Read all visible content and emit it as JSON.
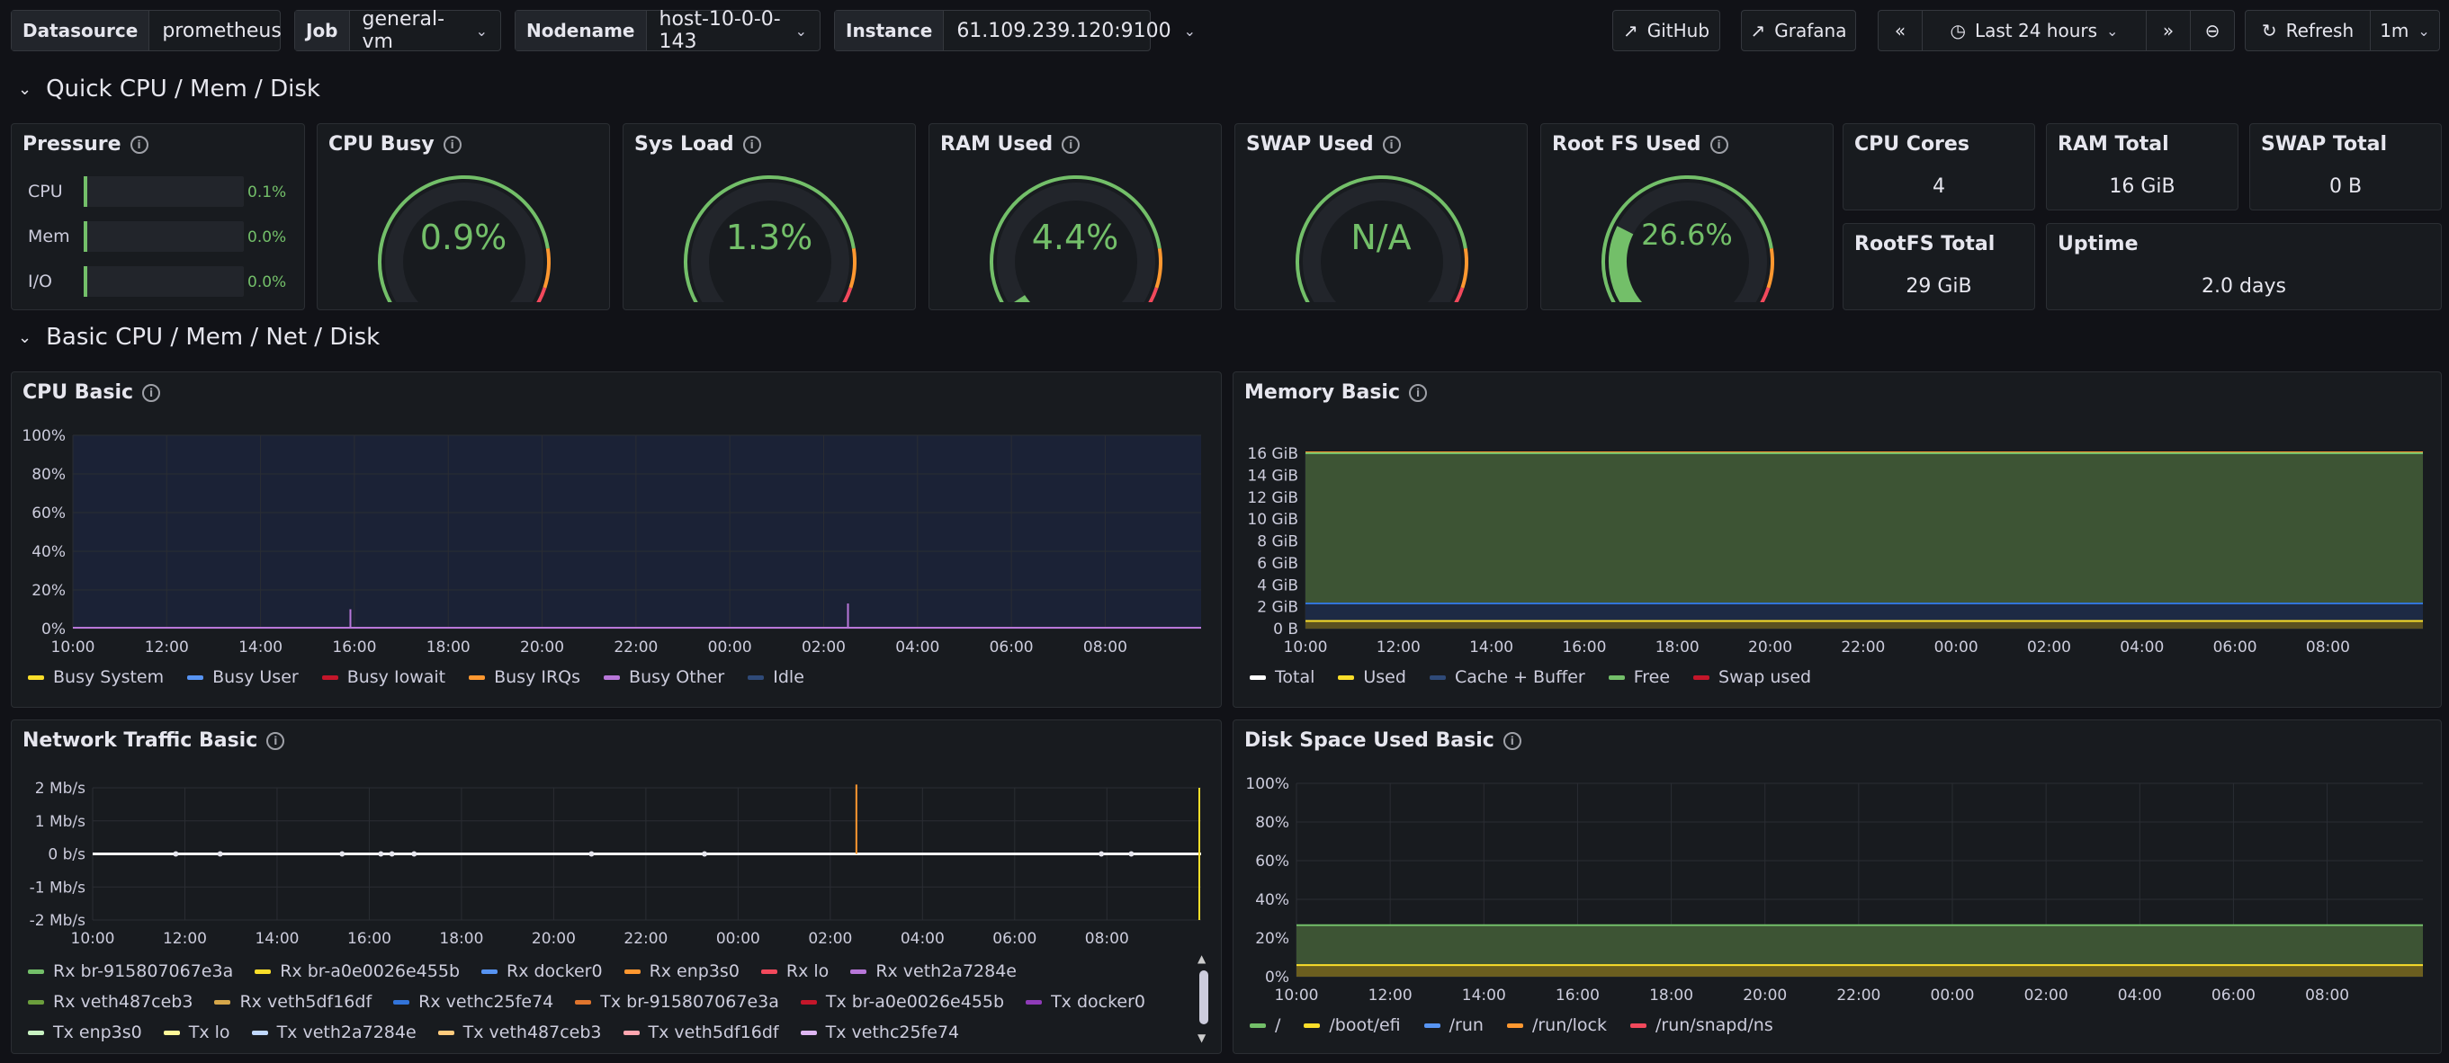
{
  "variables": [
    {
      "label": "Datasource",
      "value": "prometheus"
    },
    {
      "label": "Job",
      "value": "general-vm"
    },
    {
      "label": "Nodename",
      "value": "host-10-0-0-143"
    },
    {
      "label": "Instance",
      "value": "61.109.239.120:9100"
    }
  ],
  "toolbar": {
    "github": "GitHub",
    "grafana": "Grafana",
    "time_range": "Last 24 hours",
    "refresh": "Refresh",
    "interval": "1m"
  },
  "rows": {
    "quick": "Quick CPU / Mem / Disk",
    "basic": "Basic CPU / Mem / Net / Disk"
  },
  "pressure": {
    "title": "Pressure",
    "items": [
      {
        "label": "CPU",
        "value": "0.1%",
        "fraction": 0.001
      },
      {
        "label": "Mem",
        "value": "0.0%",
        "fraction": 0
      },
      {
        "label": "I/O",
        "value": "0.0%",
        "fraction": 0
      }
    ]
  },
  "gauges": [
    {
      "title": "CPU Busy",
      "value": "0.9%",
      "fraction": 0.009
    },
    {
      "title": "Sys Load",
      "value": "1.3%",
      "fraction": 0.013
    },
    {
      "title": "RAM Used",
      "value": "4.4%",
      "fraction": 0.044
    },
    {
      "title": "SWAP Used",
      "value": "N/A",
      "fraction": 0
    },
    {
      "title": "Root FS Used",
      "value": "26.6%",
      "fraction": 0.266
    }
  ],
  "stats": {
    "cpu_cores": {
      "title": "CPU Cores",
      "value": "4"
    },
    "ram_total": {
      "title": "RAM Total",
      "value": "16 GiB"
    },
    "swap_total": {
      "title": "SWAP Total",
      "value": "0 B"
    },
    "rootfs_total": {
      "title": "RootFS Total",
      "value": "29 GiB"
    },
    "uptime": {
      "title": "Uptime",
      "value": "2.0 days"
    }
  },
  "colors": {
    "green": "#73bf69",
    "yellow": "#fade2a",
    "blue": "#5794f2",
    "red": "#f2495c",
    "orange": "#ff9830",
    "purple": "#b877d9",
    "gauge_red": "#f2495c"
  },
  "chart_data": [
    {
      "title": "CPU Basic",
      "type": "area",
      "x": [
        "10:00",
        "12:00",
        "14:00",
        "16:00",
        "18:00",
        "20:00",
        "22:00",
        "00:00",
        "02:00",
        "04:00",
        "06:00",
        "08:00"
      ],
      "yticks": [
        "100%",
        "80%",
        "60%",
        "40%",
        "20%",
        "0%"
      ],
      "ylim": [
        0,
        100
      ],
      "series": [
        {
          "name": "Busy System",
          "color": "#fade2a"
        },
        {
          "name": "Busy User",
          "color": "#5794f2"
        },
        {
          "name": "Busy Iowait",
          "color": "#c4162a"
        },
        {
          "name": "Busy IRQs",
          "color": "#ff9830"
        },
        {
          "name": "Busy Other",
          "color": "#b877d9"
        },
        {
          "name": "Idle",
          "color": "#2f4a78"
        }
      ]
    },
    {
      "title": "Memory Basic",
      "type": "area",
      "x": [
        "10:00",
        "12:00",
        "14:00",
        "16:00",
        "18:00",
        "20:00",
        "22:00",
        "00:00",
        "02:00",
        "04:00",
        "06:00",
        "08:00"
      ],
      "yticks": [
        "16 GiB",
        "14 GiB",
        "12 GiB",
        "10 GiB",
        "8 GiB",
        "6 GiB",
        "4 GiB",
        "2 GiB",
        "0 B"
      ],
      "ylim": [
        0,
        16
      ],
      "series": [
        {
          "name": "Total",
          "color": "#ffffff",
          "value": 16
        },
        {
          "name": "Used",
          "color": "#fade2a",
          "value": 0.7
        },
        {
          "name": "Cache + Buffer",
          "color": "#2f4a78",
          "value": 1.6
        },
        {
          "name": "Free",
          "color": "#73bf69",
          "value": 13.7
        },
        {
          "name": "Swap used",
          "color": "#c4162a",
          "value": 0
        }
      ]
    },
    {
      "title": "Network Traffic Basic",
      "type": "line",
      "x": [
        "10:00",
        "12:00",
        "14:00",
        "16:00",
        "18:00",
        "20:00",
        "22:00",
        "00:00",
        "02:00",
        "04:00",
        "06:00",
        "08:00"
      ],
      "yticks": [
        "2 Mb/s",
        "1 Mb/s",
        "0 b/s",
        "-1 Mb/s",
        "-2 Mb/s"
      ],
      "ylim": [
        -2.5,
        2.5
      ],
      "series": [
        {
          "name": "Rx br-915807067e3a",
          "color": "#73bf69"
        },
        {
          "name": "Rx br-a0e0026e455b",
          "color": "#fade2a"
        },
        {
          "name": "Rx docker0",
          "color": "#5794f2"
        },
        {
          "name": "Rx enp3s0",
          "color": "#ff9830"
        },
        {
          "name": "Rx lo",
          "color": "#f2495c"
        },
        {
          "name": "Rx veth2a7284e",
          "color": "#b877d9"
        },
        {
          "name": "Rx veth487ceb3",
          "color": "#6b9e3c"
        },
        {
          "name": "Rx veth5df16df",
          "color": "#d6a74a"
        },
        {
          "name": "Rx vethc25fe74",
          "color": "#3274d9"
        },
        {
          "name": "Tx br-915807067e3a",
          "color": "#e0752d"
        },
        {
          "name": "Tx br-a0e0026e455b",
          "color": "#c4162a"
        },
        {
          "name": "Tx docker0",
          "color": "#8f3bb8"
        },
        {
          "name": "Tx enp3s0",
          "color": "#c8f2c2"
        },
        {
          "name": "Tx lo",
          "color": "#fff899"
        },
        {
          "name": "Tx veth2a7284e",
          "color": "#c0d8ff"
        },
        {
          "name": "Tx veth487ceb3",
          "color": "#ffcb7d"
        },
        {
          "name": "Tx veth5df16df",
          "color": "#ffa6b0"
        },
        {
          "name": "Tx vethc25fe74",
          "color": "#deb6f2"
        }
      ]
    },
    {
      "title": "Disk Space Used Basic",
      "type": "area",
      "x": [
        "10:00",
        "12:00",
        "14:00",
        "16:00",
        "18:00",
        "20:00",
        "22:00",
        "00:00",
        "02:00",
        "04:00",
        "06:00",
        "08:00"
      ],
      "yticks": [
        "100%",
        "80%",
        "60%",
        "40%",
        "20%",
        "0%"
      ],
      "ylim": [
        0,
        100
      ],
      "series": [
        {
          "name": "/",
          "color": "#73bf69",
          "value": 26.6
        },
        {
          "name": "/boot/efi",
          "color": "#fade2a",
          "value": 6
        },
        {
          "name": "/run",
          "color": "#5794f2",
          "value": 0.1
        },
        {
          "name": "/run/lock",
          "color": "#ff9830",
          "value": 0
        },
        {
          "name": "/run/snapd/ns",
          "color": "#f2495c",
          "value": 0.1
        }
      ]
    }
  ]
}
